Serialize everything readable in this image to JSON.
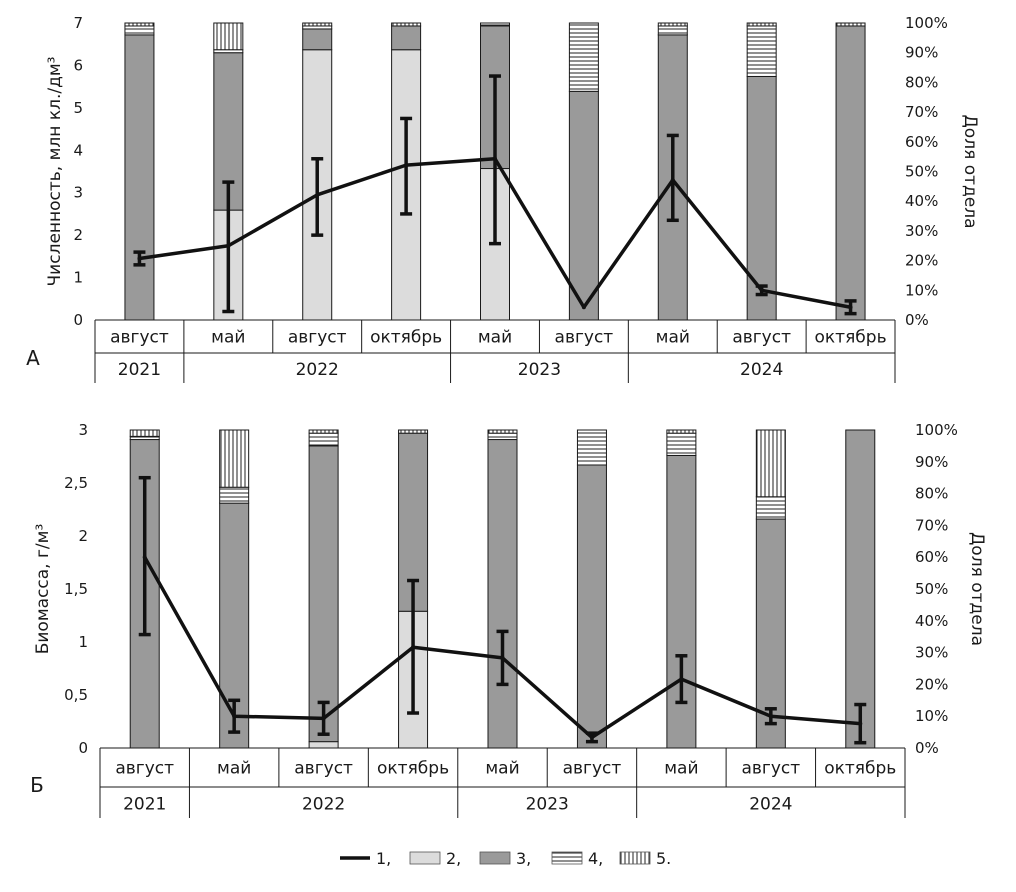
{
  "colors": {
    "line": "#111111",
    "group2": "#dcdcdc",
    "group3": "#9a9a9a",
    "group4_bg": "#ffffff",
    "group5_bg": "#ffffff",
    "stroke": "#1a1a1a"
  },
  "legend": {
    "items": [
      {
        "key": "1",
        "label": "1,",
        "pattern": "line"
      },
      {
        "key": "2",
        "label": "2,",
        "pattern": "light"
      },
      {
        "key": "3",
        "label": "3,",
        "pattern": "dark"
      },
      {
        "key": "4",
        "label": "4,",
        "pattern": "hatch-h"
      },
      {
        "key": "5",
        "label": "5.",
        "pattern": "hatch-v"
      }
    ]
  },
  "chart_data": [
    {
      "type": "bar",
      "panel_label": "А",
      "categories": [
        "август",
        "май",
        "август",
        "октябрь",
        "май",
        "август",
        "май",
        "август",
        "октябрь"
      ],
      "year_groups": [
        {
          "label": "2021",
          "count": 1
        },
        {
          "label": "2022",
          "count": 3
        },
        {
          "label": "2023",
          "count": 2
        },
        {
          "label": "2024",
          "count": 3
        }
      ],
      "ylabel": "Численность, млн кл./дм³",
      "ylim": [
        0,
        7
      ],
      "yticks": [
        "0",
        "1",
        "2",
        "3",
        "4",
        "5",
        "6",
        "7"
      ],
      "y2label": "Доля  отдела",
      "y2lim": [
        0,
        100
      ],
      "y2ticks": [
        "0%",
        "10%",
        "20%",
        "30%",
        "40%",
        "50%",
        "60%",
        "70%",
        "80%",
        "90%",
        "100%"
      ],
      "stack_series_names": [
        "2",
        "3",
        "4",
        "5"
      ],
      "stacks_percent": [
        [
          0,
          96,
          3,
          1
        ],
        [
          37,
          53,
          1,
          9
        ],
        [
          91,
          7,
          1,
          1
        ],
        [
          91,
          8,
          0,
          1
        ],
        [
          51,
          48,
          1,
          0
        ],
        [
          0,
          77,
          23,
          0
        ],
        [
          0,
          96,
          3,
          1
        ],
        [
          0,
          82,
          17,
          1
        ],
        [
          0,
          99,
          0,
          1
        ]
      ],
      "line": {
        "name": "1",
        "values": [
          1.45,
          1.75,
          2.95,
          3.65,
          3.8,
          0.3,
          3.3,
          0.7,
          0.3
        ],
        "err_low": [
          1.3,
          0.2,
          2.0,
          2.5,
          1.8,
          0.3,
          2.35,
          0.6,
          0.15
        ],
        "err_high": [
          1.6,
          3.25,
          3.8,
          4.75,
          5.75,
          0.3,
          4.35,
          0.8,
          0.45
        ]
      }
    },
    {
      "type": "bar",
      "panel_label": "Б",
      "categories": [
        "август",
        "май",
        "август",
        "октябрь",
        "май",
        "август",
        "май",
        "август",
        "октябрь"
      ],
      "year_groups": [
        {
          "label": "2021",
          "count": 1
        },
        {
          "label": "2022",
          "count": 3
        },
        {
          "label": "2023",
          "count": 2
        },
        {
          "label": "2024",
          "count": 3
        }
      ],
      "ylabel": "Биомасса, г/м³",
      "ylim": [
        0,
        3
      ],
      "yticks": [
        "0",
        "0,5",
        "1",
        "1,5",
        "2",
        "2,5",
        "3"
      ],
      "y2label": "Доля  отдела",
      "y2lim": [
        0,
        100
      ],
      "y2ticks": [
        "0%",
        "10%",
        "20%",
        "30%",
        "40%",
        "50%",
        "60%",
        "70%",
        "80%",
        "90%",
        "100%"
      ],
      "stack_series_names": [
        "2",
        "3",
        "4",
        "5"
      ],
      "stacks_percent": [
        [
          0,
          97,
          1,
          2
        ],
        [
          0,
          77,
          5,
          18
        ],
        [
          2,
          93,
          4,
          1
        ],
        [
          43,
          56,
          0,
          1
        ],
        [
          0,
          97,
          2,
          1
        ],
        [
          0,
          89,
          11,
          0
        ],
        [
          0,
          92,
          7,
          1
        ],
        [
          0,
          72,
          7,
          21
        ],
        [
          0,
          100,
          0,
          0
        ]
      ],
      "line": {
        "name": "1",
        "values": [
          1.8,
          0.3,
          0.28,
          0.95,
          0.85,
          0.1,
          0.65,
          0.3,
          0.23
        ],
        "err_low": [
          1.07,
          0.15,
          0.13,
          0.33,
          0.6,
          0.06,
          0.43,
          0.23,
          0.05
        ],
        "err_high": [
          2.55,
          0.45,
          0.43,
          1.58,
          1.1,
          0.14,
          0.87,
          0.37,
          0.41
        ]
      }
    }
  ]
}
